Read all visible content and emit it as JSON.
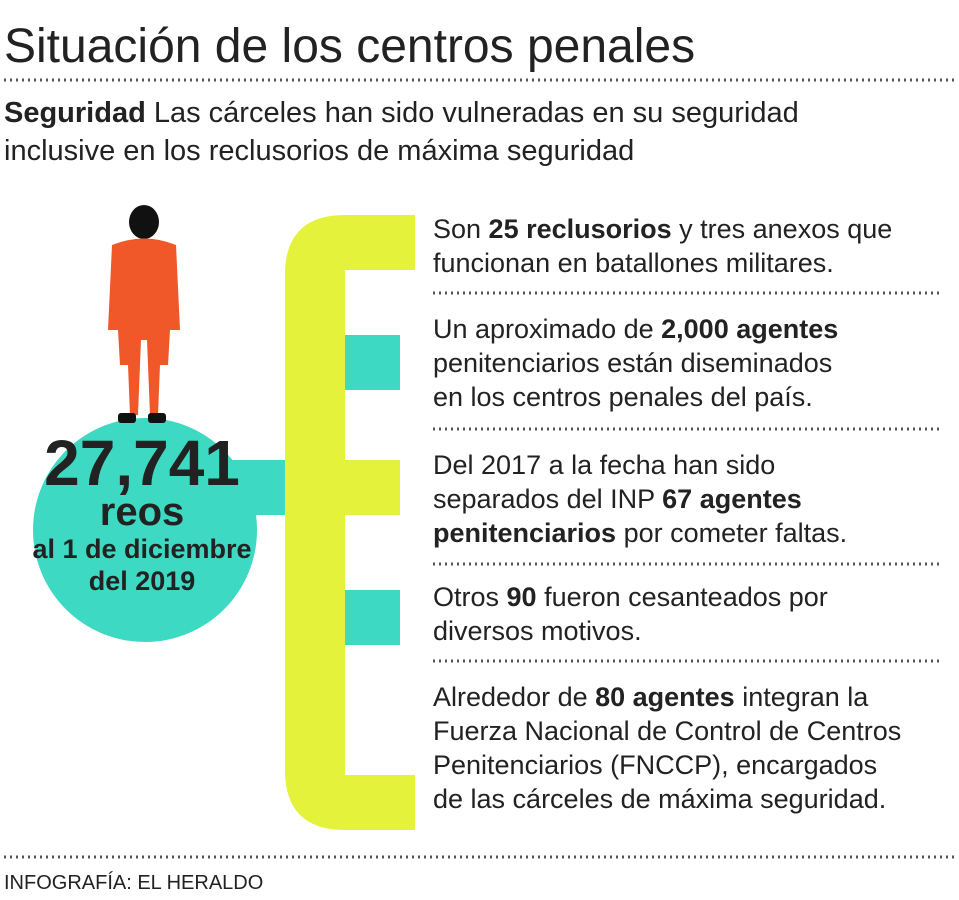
{
  "header": {
    "title": "Situación de los centros penales",
    "subtitle": {
      "lines": [
        [
          {
            "text": "Seguridad",
            "bold": true
          },
          {
            "text": " Las cárceles han sido vulneradas en su seguridad",
            "bold": false
          }
        ],
        [
          {
            "text": "inclusive en los reclusorios de máxima seguridad",
            "bold": false
          }
        ]
      ]
    }
  },
  "circle": {
    "number": "27,741",
    "unit": "reos",
    "date_lines": [
      "al 1 de diciembre",
      "del 2019"
    ]
  },
  "items": [
    {
      "lines": [
        [
          {
            "text": "Son ",
            "bold": false
          },
          {
            "text": "25 reclusorios",
            "bold": true
          },
          {
            "text": " y tres anexos que",
            "bold": false
          }
        ],
        [
          {
            "text": "funcionan en batallones militares.",
            "bold": false
          }
        ]
      ]
    },
    {
      "lines": [
        [
          {
            "text": "Un aproximado de ",
            "bold": false
          },
          {
            "text": "2,000 agentes",
            "bold": true
          }
        ],
        [
          {
            "text": "penitenciarios están diseminados",
            "bold": false
          }
        ],
        [
          {
            "text": "en los centros penales del país.",
            "bold": false
          }
        ]
      ]
    },
    {
      "lines": [
        [
          {
            "text": "Del 2017 a la fecha han sido",
            "bold": false
          }
        ],
        [
          {
            "text": "separados del INP ",
            "bold": false
          },
          {
            "text": "67 agentes",
            "bold": true
          }
        ],
        [
          {
            "text": "penitenciarios",
            "bold": true
          },
          {
            "text": " por cometer faltas.",
            "bold": false
          }
        ]
      ]
    },
    {
      "lines": [
        [
          {
            "text": "Otros ",
            "bold": false
          },
          {
            "text": "90",
            "bold": true
          },
          {
            "text": " fueron cesanteados por",
            "bold": false
          }
        ],
        [
          {
            "text": "diversos motivos.",
            "bold": false
          }
        ]
      ]
    },
    {
      "lines": [
        [
          {
            "text": "Alrededor de ",
            "bold": false
          },
          {
            "text": "80 agentes",
            "bold": true
          },
          {
            "text": " integran la",
            "bold": false
          }
        ],
        [
          {
            "text": "Fuerza Nacional de Control de Centros",
            "bold": false
          }
        ],
        [
          {
            "text": "Penitenciarios (FNCCP), encargados",
            "bold": false
          }
        ],
        [
          {
            "text": "de las cárceles de máxima seguridad.",
            "bold": false
          }
        ]
      ]
    }
  ],
  "footer": {
    "credit": "INFOGRAFÍA: EL HERALDO"
  }
}
